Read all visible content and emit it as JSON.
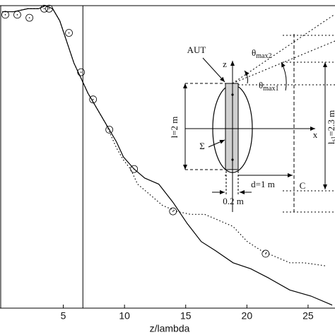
{
  "chart_data": {
    "type": "line",
    "xlabel": "z/lambda",
    "xlim": [
      0,
      27.2
    ],
    "xticks": [
      5,
      10,
      15,
      20,
      25
    ],
    "ylim": [
      0,
      1
    ],
    "vline": 6.6,
    "series": [
      {
        "style": "solid",
        "color": "#000000",
        "x": [
          0,
          0.95,
          2.11,
          2.98,
          3.55,
          4.13,
          4.71,
          5.29,
          5.87,
          6.45,
          7.02,
          7.6,
          8.47,
          9.34,
          9.91,
          10.78,
          11.65,
          12.8,
          13.96,
          15.12,
          16.27,
          17.43,
          18.87,
          20.32,
          21.76,
          23.5,
          25.23,
          26.97
        ],
        "values": [
          0.98,
          0.98,
          0.99,
          0.99,
          1.0,
          0.99,
          0.95,
          0.88,
          0.81,
          0.76,
          0.71,
          0.67,
          0.61,
          0.55,
          0.5,
          0.46,
          0.43,
          0.41,
          0.35,
          0.28,
          0.22,
          0.19,
          0.15,
          0.13,
          0.1,
          0.06,
          0.04,
          0.01
        ]
      },
      {
        "style": "dotted",
        "color": "#000000",
        "x": [
          0,
          0.95,
          2.11,
          2.98,
          3.55,
          4.13,
          4.71,
          5.29,
          5.87,
          6.45,
          7.02,
          7.6,
          8.47,
          9.34,
          9.91,
          10.49,
          11.07,
          11.94,
          13.09,
          14.25,
          15.4,
          16.56,
          17.72,
          18.87,
          20.03,
          21.18,
          22.34,
          23.5,
          24.65,
          26.39
        ],
        "values": [
          0.98,
          0.98,
          0.99,
          0.99,
          1.0,
          0.99,
          0.95,
          0.88,
          0.81,
          0.76,
          0.71,
          0.67,
          0.61,
          0.53,
          0.49,
          0.46,
          0.41,
          0.38,
          0.34,
          0.32,
          0.31,
          0.31,
          0.29,
          0.27,
          0.22,
          0.19,
          0.17,
          0.15,
          0.15,
          0.14
        ]
      },
      {
        "style": "circles",
        "color": "#000000",
        "x": [
          0.26,
          1.24,
          2.23,
          3.44,
          3.84,
          5.46,
          6.45,
          7.43,
          8.76,
          10.78,
          13.96,
          21.53
        ],
        "values": [
          0.97,
          0.97,
          0.96,
          0.99,
          0.99,
          0.91,
          0.78,
          0.69,
          0.59,
          0.46,
          0.32,
          0.18
        ]
      }
    ],
    "inset": {
      "aut": "AUT",
      "z": "z",
      "x": "x",
      "theta2": {
        "symbol": "θ",
        "sub": "max2"
      },
      "theta1": {
        "symbol": "θ",
        "sub": "max1"
      },
      "l": "l=2 m",
      "ls": {
        "symbol": "l",
        "sub": "s1",
        "rest": "=2.3 m"
      },
      "sigma": "Σ",
      "d": "d=1 m",
      "c": "C",
      "w": "0.2 m"
    }
  }
}
